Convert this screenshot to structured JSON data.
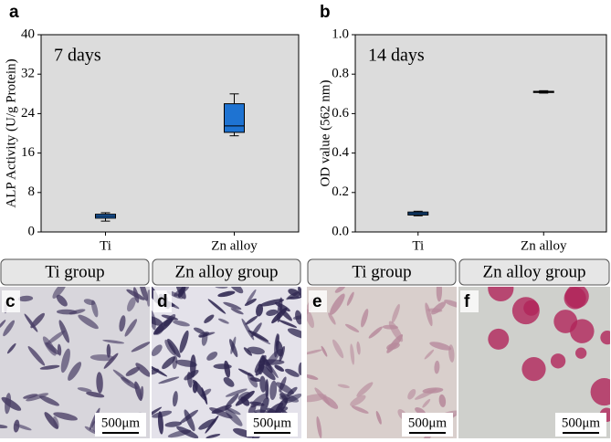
{
  "chart_data": [
    {
      "type": "box",
      "panel_label": "a",
      "annotation": "7 days",
      "ylabel": "ALP Activity (U/g Protein)",
      "categories": [
        "Ti",
        "Zn alloy"
      ],
      "color": "#1e73d2",
      "boxes": [
        {
          "min": 2.2,
          "q1": 2.8,
          "median": 3.2,
          "q3": 3.6,
          "max": 3.9
        },
        {
          "min": 19.5,
          "q1": 20.2,
          "median": 21.5,
          "q3": 26,
          "max": 28
        }
      ],
      "ylim": [
        0,
        40
      ],
      "yticks": [
        0,
        8,
        16,
        24,
        32,
        40
      ]
    },
    {
      "type": "box",
      "panel_label": "b",
      "annotation": "14 days",
      "ylabel": "OD value (562 nm)",
      "categories": [
        "Ti",
        "Zn alloy"
      ],
      "color": "#1e73d2",
      "boxes": [
        {
          "min": 0.082,
          "q1": 0.086,
          "median": 0.093,
          "q3": 0.101,
          "max": 0.105
        },
        {
          "min": 0.704,
          "q1": 0.707,
          "median": 0.71,
          "q3": 0.713,
          "max": 0.716
        }
      ],
      "ylim": [
        0,
        1
      ],
      "yticks": [
        {
          "value": 0,
          "label": "0.0"
        },
        0.2,
        0.4,
        0.6,
        0.8,
        {
          "value": 1,
          "label": "1.0"
        }
      ]
    }
  ],
  "panels": [
    {
      "group": "Ti group",
      "label": "c",
      "scale": "500μm"
    },
    {
      "group": "Zn alloy group",
      "label": "d",
      "scale": "500μm"
    },
    {
      "group": "Ti group",
      "label": "e",
      "scale": "500μm"
    },
    {
      "group": "Zn alloy group",
      "label": "f",
      "scale": "500μm"
    }
  ]
}
